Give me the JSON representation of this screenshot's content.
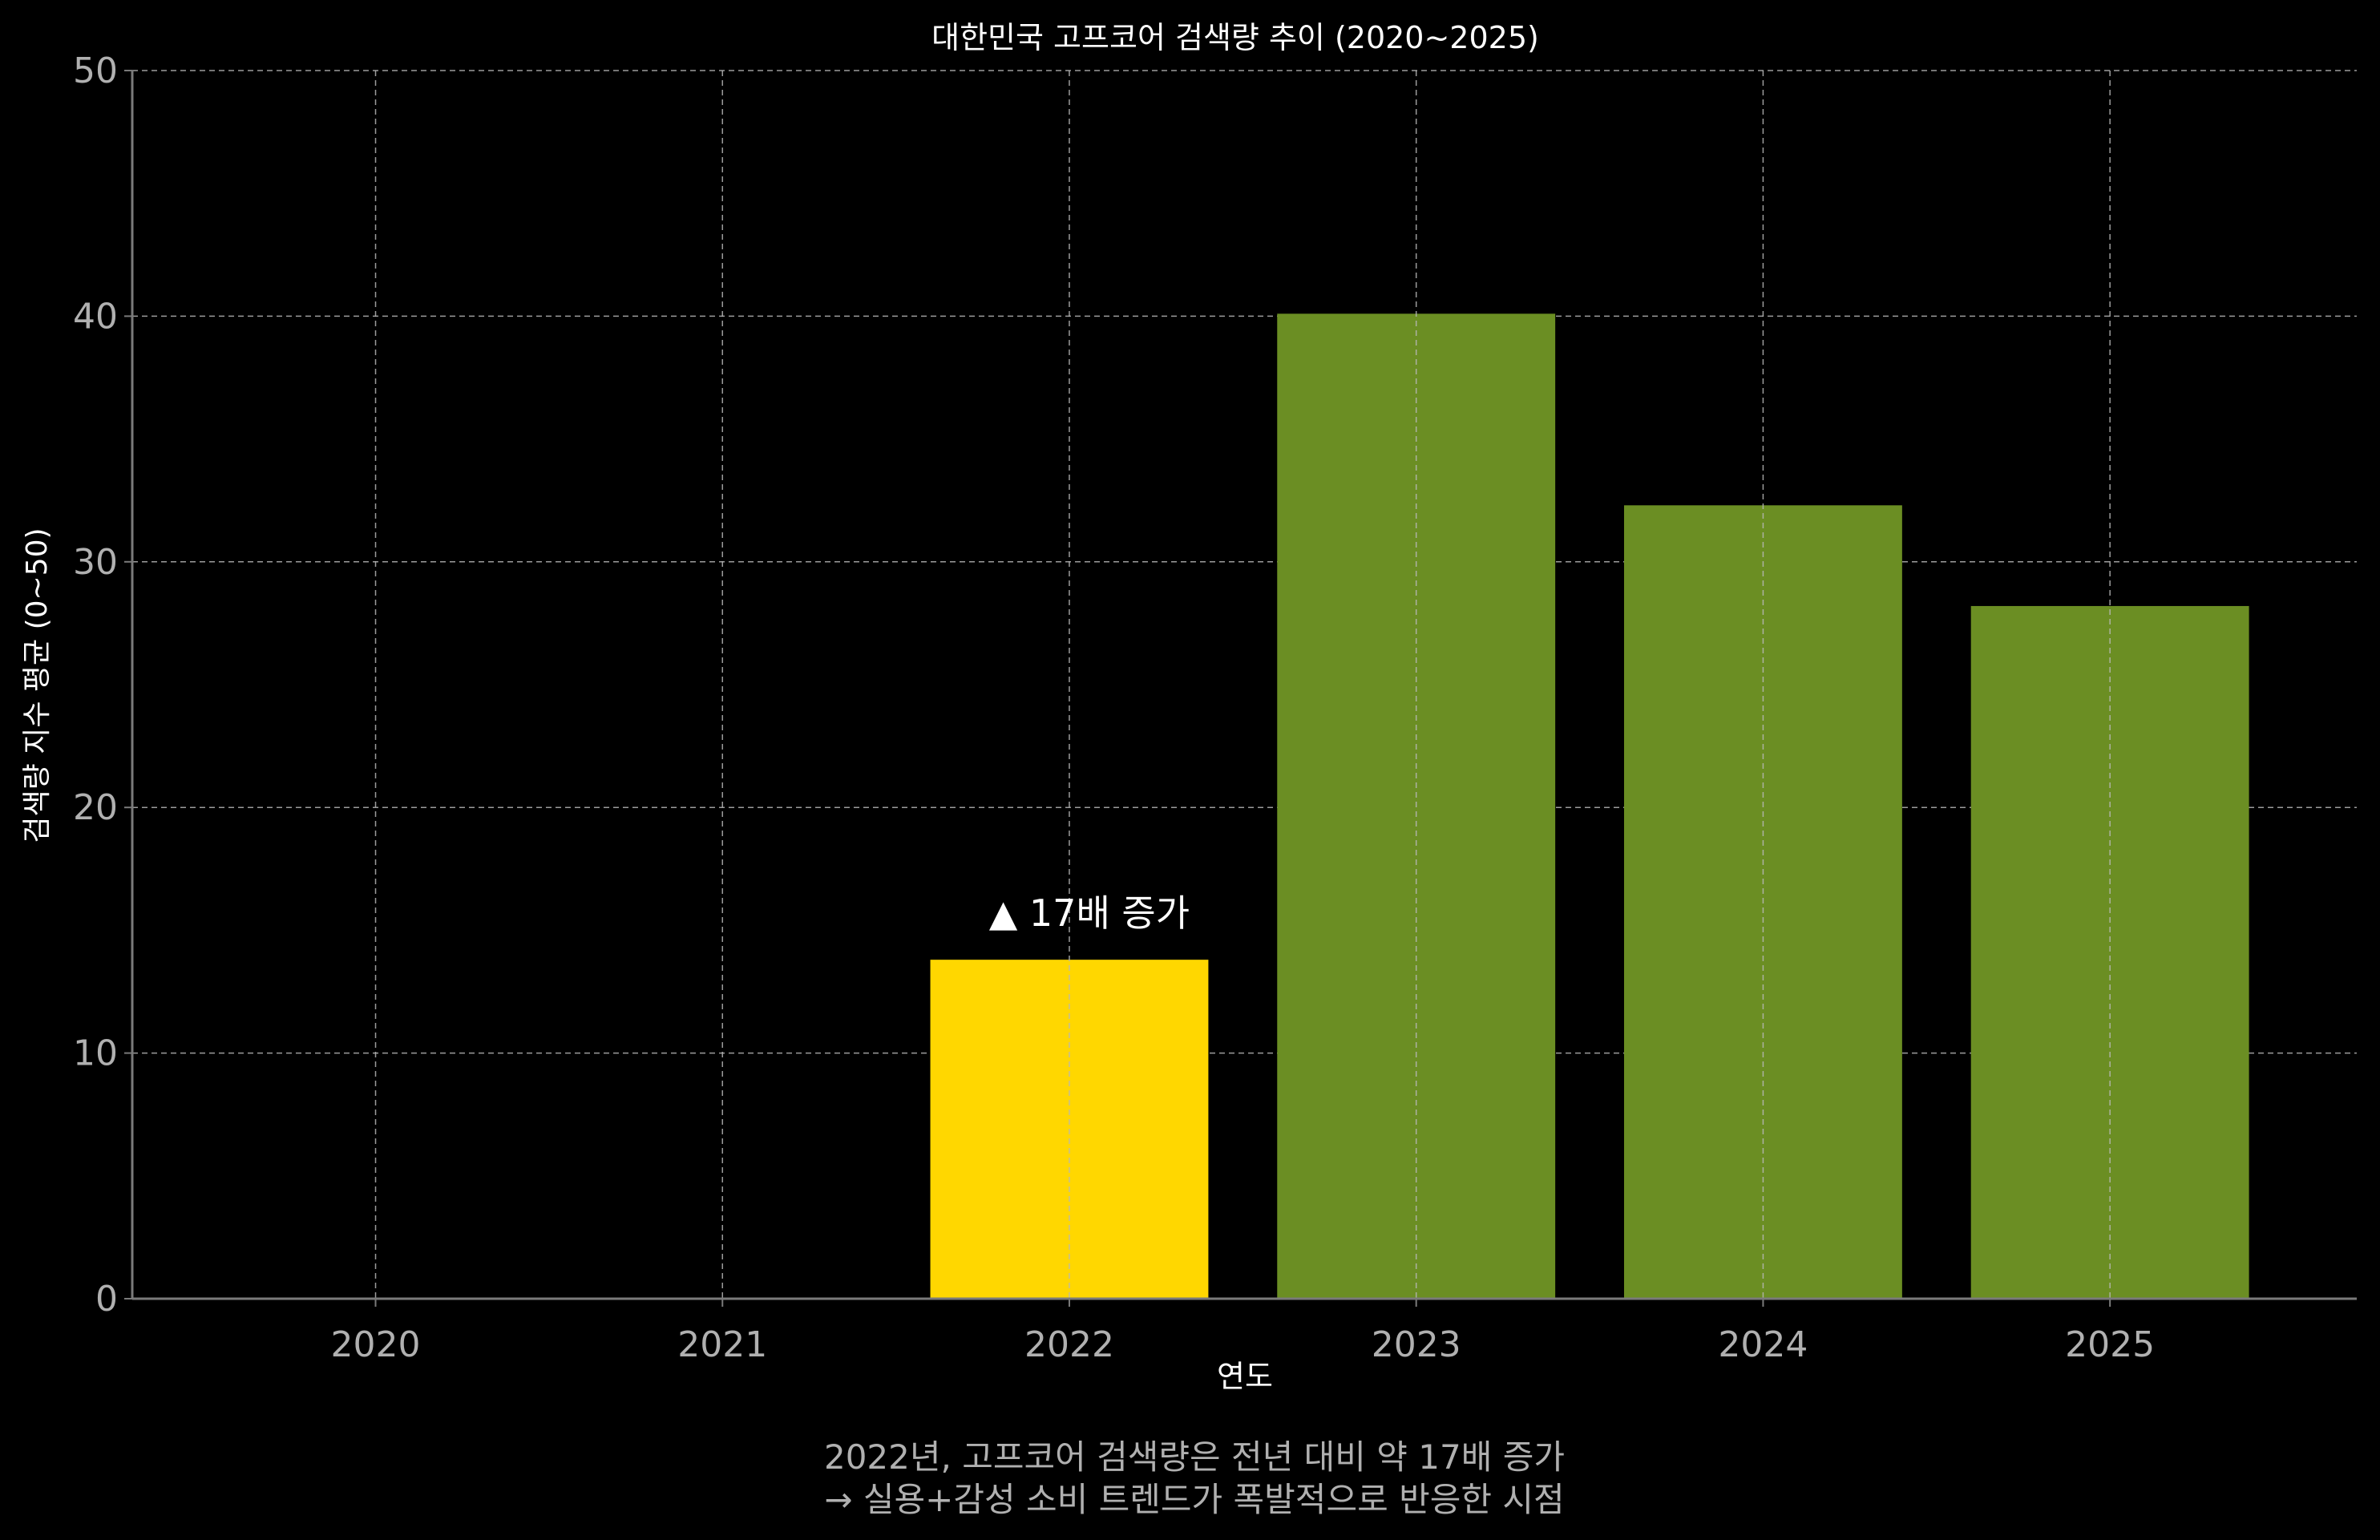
{
  "chart_data": {
    "type": "bar",
    "title": "대한민국 고프코어 검색량 추이 (2020~2025)",
    "xlabel": "연도",
    "ylabel": "검색량 지수 평균 (0~50)",
    "categories": [
      "2020",
      "2021",
      "2022",
      "2023",
      "2024",
      "2025"
    ],
    "values": [
      0,
      0,
      13.8,
      40.1,
      32.3,
      28.2
    ],
    "bar_colors": [
      "#6b8e23",
      "#6b8e23",
      "#ffd700",
      "#6b8e23",
      "#6b8e23",
      "#6b8e23"
    ],
    "ylim": [
      0,
      50
    ],
    "yticks": [
      "0",
      "10",
      "20",
      "30",
      "40",
      "50"
    ],
    "grid": true,
    "annotation": {
      "text": "▲ 17배 증가",
      "category": "2022",
      "y": 16
    },
    "caption_lines": [
      "2022년, 고프코어 검색량은 전년 대비 약 17배 증가",
      "→ 실용+감성 소비 트렌드가 폭발적으로 반응한 시점"
    ]
  },
  "colors": {
    "background": "#000000",
    "text": "#ffffff",
    "tick_text": "#b0b0b0",
    "grid": "#b8b8b8",
    "axis": "#7a7a7a",
    "highlight": "#ffd700",
    "bar": "#6b8e23"
  }
}
